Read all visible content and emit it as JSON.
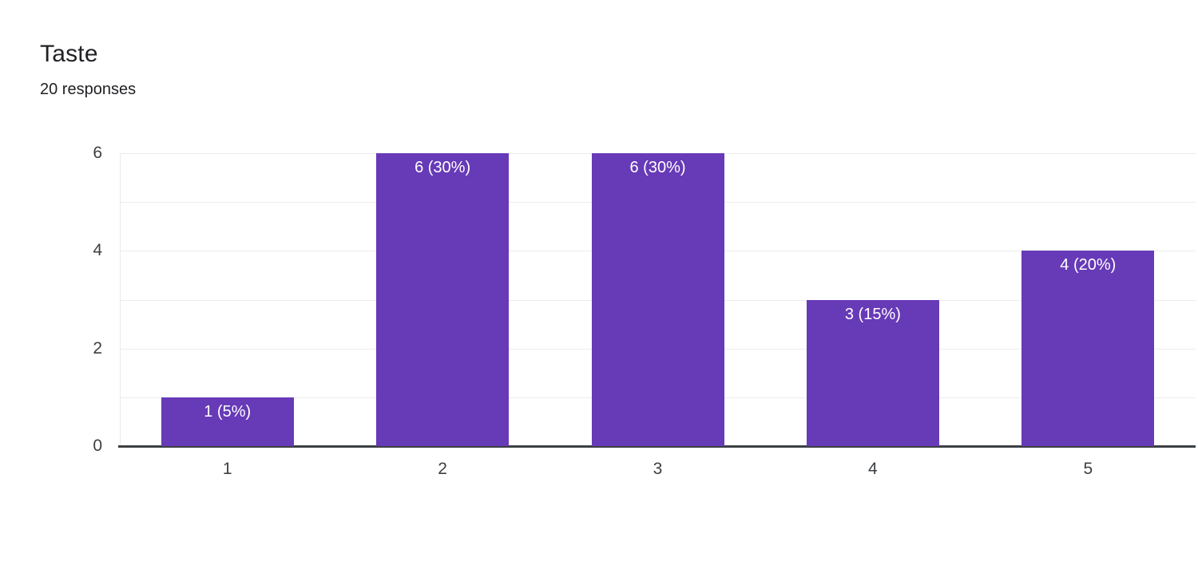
{
  "header": {
    "title": "Taste",
    "responses": "20 responses"
  },
  "colors": {
    "background": "#ffffff",
    "bar": "#673ab7",
    "bar_label": "#ffffff",
    "gridline": "#ececec",
    "axis_line": "#3c4043",
    "tick_label": "#3c4043",
    "title": "#202124"
  },
  "chart_data": {
    "type": "bar",
    "title": "Taste",
    "subtitle": "20 responses",
    "categories": [
      "1",
      "2",
      "3",
      "4",
      "5"
    ],
    "values": [
      1,
      6,
      6,
      3,
      4
    ],
    "bar_labels": [
      "1 (5%)",
      "6 (30%)",
      "6 (30%)",
      "3 (15%)",
      "4 (20%)"
    ],
    "xlabel": "",
    "ylabel": "",
    "ylim": [
      0,
      6
    ],
    "yticks": [
      0,
      2,
      4,
      6
    ],
    "gridline_step": 1,
    "grid": true,
    "legend": "none"
  }
}
